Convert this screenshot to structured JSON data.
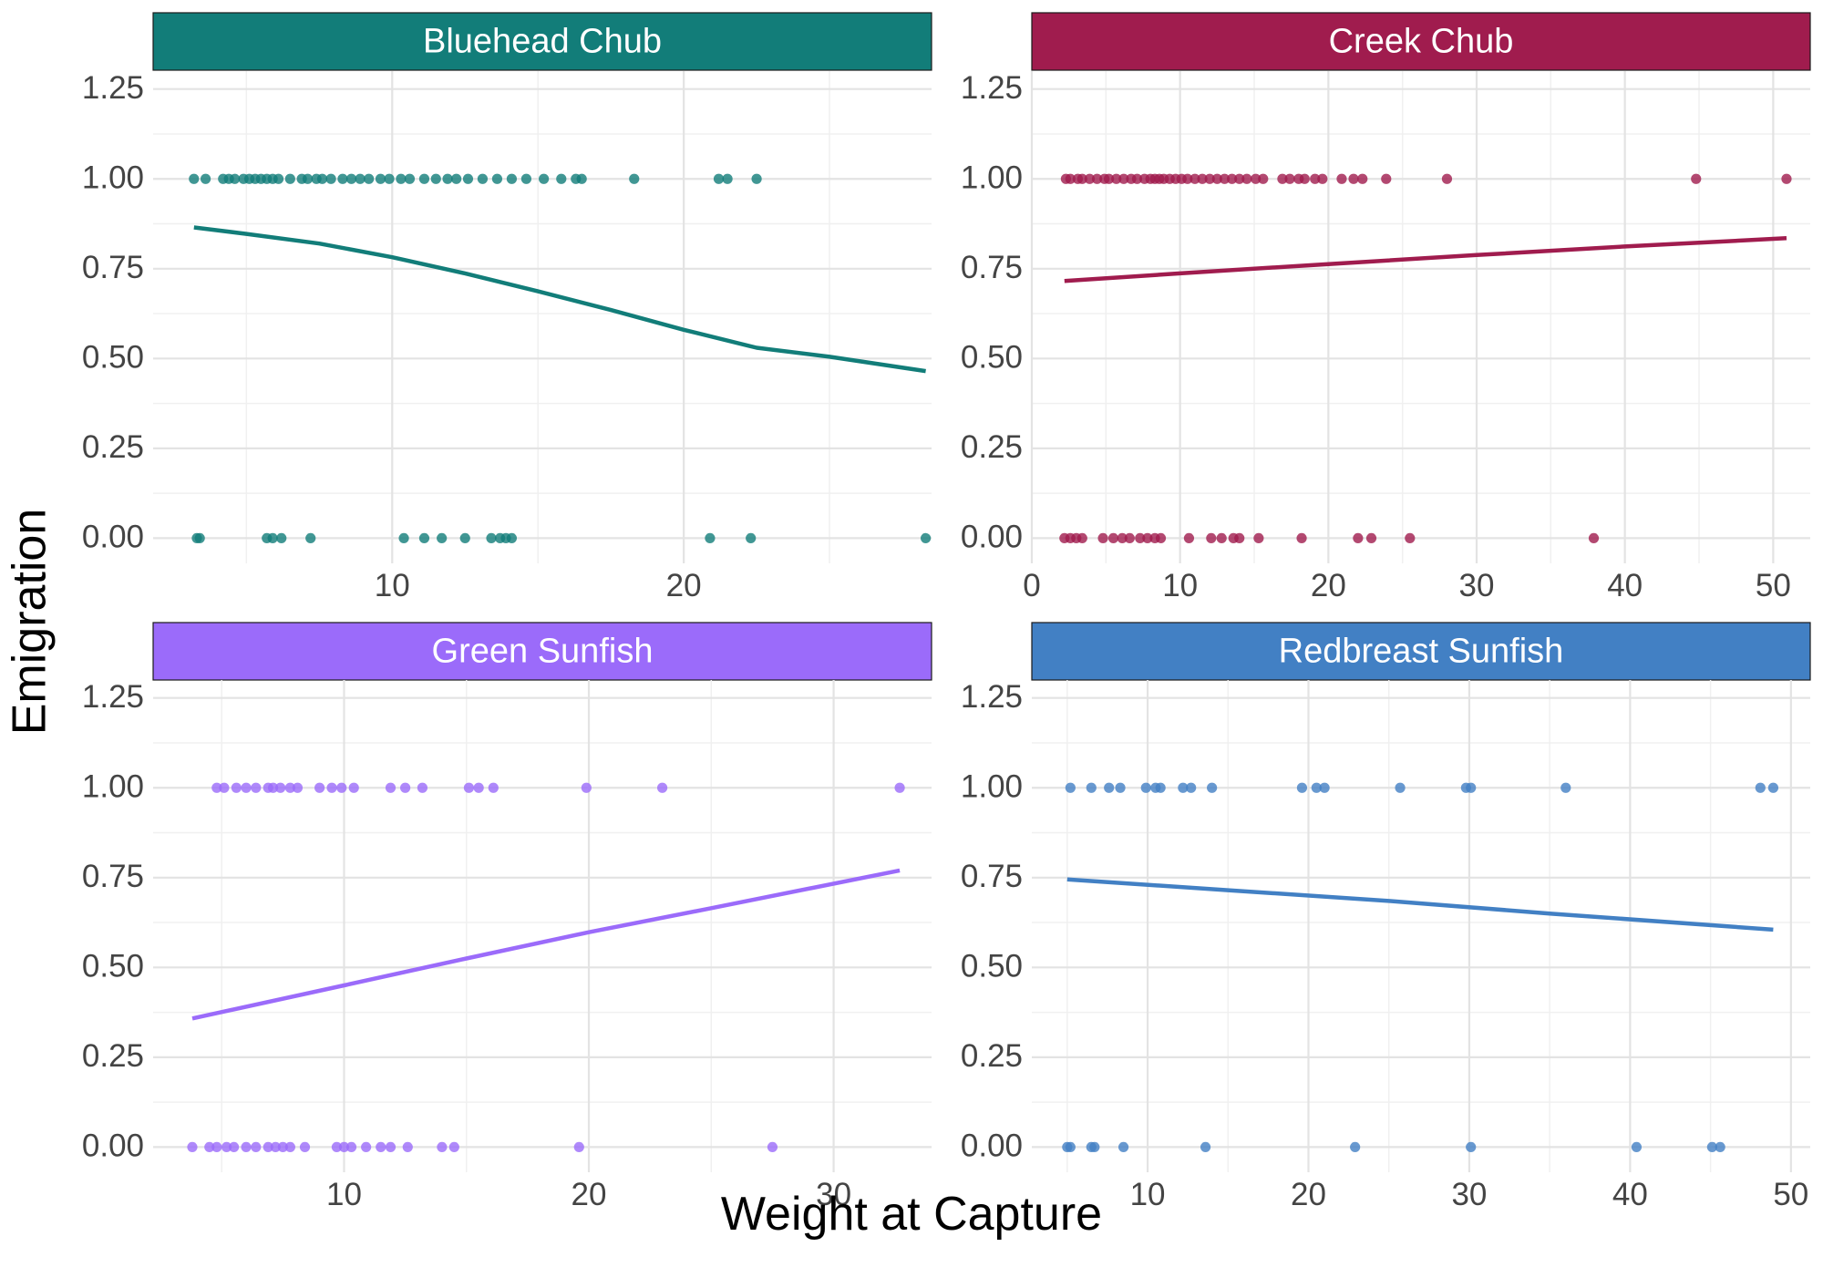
{
  "figure": {
    "xlabel": "Weight at Capture",
    "ylabel": "Emigration"
  },
  "chart_data": [
    {
      "type": "scatter",
      "title": "Bluehead Chub",
      "color": "#127D79",
      "xlim": [
        1.8,
        28.5
      ],
      "ylim": [
        -0.07,
        1.3
      ],
      "x_ticks": [
        10,
        20
      ],
      "y_ticks": [
        0,
        0.25,
        0.5,
        0.75,
        1.0,
        1.25
      ],
      "y_tick_labels": [
        "0.00",
        "0.25",
        "0.50",
        "0.75",
        "1.00",
        "1.25"
      ],
      "points": {
        "emigrated_1": [
          3.2,
          3.6,
          4.2,
          4.4,
          4.6,
          4.9,
          5.1,
          5.3,
          5.5,
          5.7,
          5.9,
          6.1,
          6.5,
          6.9,
          7.1,
          7.4,
          7.6,
          7.9,
          8.3,
          8.6,
          8.9,
          9.2,
          9.6,
          9.9,
          10.3,
          10.6,
          11.1,
          11.5,
          11.9,
          12.2,
          12.6,
          13.1,
          13.6,
          14.1,
          14.6,
          15.2,
          15.8,
          16.3,
          16.5,
          18.3,
          21.2,
          21.5,
          22.5
        ],
        "emigrated_0": [
          3.3,
          3.4,
          5.7,
          5.9,
          6.2,
          7.2,
          10.4,
          11.1,
          11.7,
          12.5,
          13.4,
          13.7,
          13.9,
          14.1,
          20.9,
          22.3,
          28.3
        ]
      },
      "fit_line": {
        "x": [
          3.2,
          5,
          7.5,
          10,
          12.5,
          15,
          17.5,
          20,
          22.5,
          25,
          28.3
        ],
        "y": [
          0.865,
          0.847,
          0.82,
          0.782,
          0.737,
          0.687,
          0.635,
          0.58,
          0.53,
          0.505,
          0.465
        ]
      }
    },
    {
      "type": "scatter",
      "title": "Creek Chub",
      "color": "#A01C4E",
      "xlim": [
        0,
        52.5
      ],
      "ylim": [
        -0.07,
        1.3
      ],
      "x_ticks": [
        0,
        10,
        20,
        30,
        40,
        50
      ],
      "y_ticks": [
        0,
        0.25,
        0.5,
        0.75,
        1.0,
        1.25
      ],
      "y_tick_labels": [
        "0.00",
        "0.25",
        "0.50",
        "0.75",
        "1.00",
        "1.25"
      ],
      "points": {
        "emigrated_1": [
          2.3,
          2.6,
          3.1,
          3.4,
          3.9,
          4.4,
          4.9,
          5.2,
          5.7,
          6.2,
          6.7,
          7.1,
          7.6,
          8.0,
          8.3,
          8.6,
          8.9,
          9.3,
          9.7,
          10.1,
          10.5,
          11.0,
          11.5,
          12.0,
          12.5,
          13.0,
          13.5,
          14.0,
          14.5,
          15.1,
          15.6,
          16.9,
          17.4,
          18.0,
          18.4,
          19.1,
          19.6,
          20.9,
          21.7,
          22.3,
          23.9,
          28.0,
          44.8,
          50.9
        ],
        "emigrated_0": [
          2.2,
          2.6,
          3.0,
          3.4,
          4.8,
          5.5,
          6.1,
          6.6,
          7.3,
          7.8,
          8.3,
          8.7,
          10.6,
          12.1,
          12.8,
          13.6,
          14.0,
          15.3,
          18.2,
          22.0,
          22.9,
          25.5,
          37.9
        ]
      },
      "fit_line": {
        "x": [
          2.2,
          10,
          20,
          30,
          40,
          50.9
        ],
        "y": [
          0.716,
          0.737,
          0.763,
          0.788,
          0.812,
          0.835
        ]
      }
    },
    {
      "type": "scatter",
      "title": "Green Sunfish",
      "color": "#9B6BFA",
      "xlim": [
        2.2,
        34.0
      ],
      "ylim": [
        -0.07,
        1.3
      ],
      "x_ticks": [
        10,
        20,
        30
      ],
      "y_ticks": [
        0,
        0.25,
        0.5,
        0.75,
        1.0,
        1.25
      ],
      "y_tick_labels": [
        "0.00",
        "0.25",
        "0.50",
        "0.75",
        "1.00",
        "1.25"
      ],
      "points": {
        "emigrated_1": [
          4.8,
          5.1,
          5.6,
          6.0,
          6.4,
          6.9,
          7.1,
          7.4,
          7.8,
          8.1,
          9.0,
          9.5,
          9.9,
          10.4,
          11.9,
          12.5,
          13.2,
          15.1,
          15.5,
          16.1,
          19.9,
          23.0,
          32.7
        ],
        "emigrated_0": [
          3.8,
          4.5,
          4.8,
          5.2,
          5.5,
          6.0,
          6.4,
          6.9,
          7.2,
          7.5,
          7.8,
          8.4,
          9.7,
          10.0,
          10.3,
          10.9,
          11.5,
          11.9,
          12.6,
          14.0,
          14.5,
          19.6,
          27.5
        ]
      },
      "fit_line": {
        "x": [
          3.8,
          10,
          15,
          20,
          25,
          32.7
        ],
        "y": [
          0.358,
          0.45,
          0.525,
          0.598,
          0.665,
          0.77
        ]
      }
    },
    {
      "type": "scatter",
      "title": "Redbreast Sunfish",
      "color": "#4280C4",
      "xlim": [
        2.8,
        51.2
      ],
      "ylim": [
        -0.07,
        1.3
      ],
      "x_ticks": [
        10,
        20,
        30,
        40,
        50
      ],
      "y_ticks": [
        0,
        0.25,
        0.5,
        0.75,
        1.0,
        1.25
      ],
      "y_tick_labels": [
        "0.00",
        "0.25",
        "0.50",
        "0.75",
        "1.00",
        "1.25"
      ],
      "points": {
        "emigrated_1": [
          5.2,
          6.5,
          7.6,
          8.3,
          9.9,
          10.5,
          10.8,
          12.2,
          12.7,
          14.0,
          19.6,
          20.5,
          21.0,
          25.7,
          29.8,
          30.1,
          36.0,
          48.1,
          48.9
        ],
        "emigrated_0": [
          5.0,
          5.2,
          6.5,
          6.7,
          8.5,
          13.6,
          22.9,
          30.1,
          40.4,
          45.1,
          45.6
        ]
      },
      "fit_line": {
        "x": [
          5.0,
          15,
          25,
          35,
          48.9
        ],
        "y": [
          0.745,
          0.715,
          0.685,
          0.65,
          0.605
        ]
      }
    }
  ]
}
